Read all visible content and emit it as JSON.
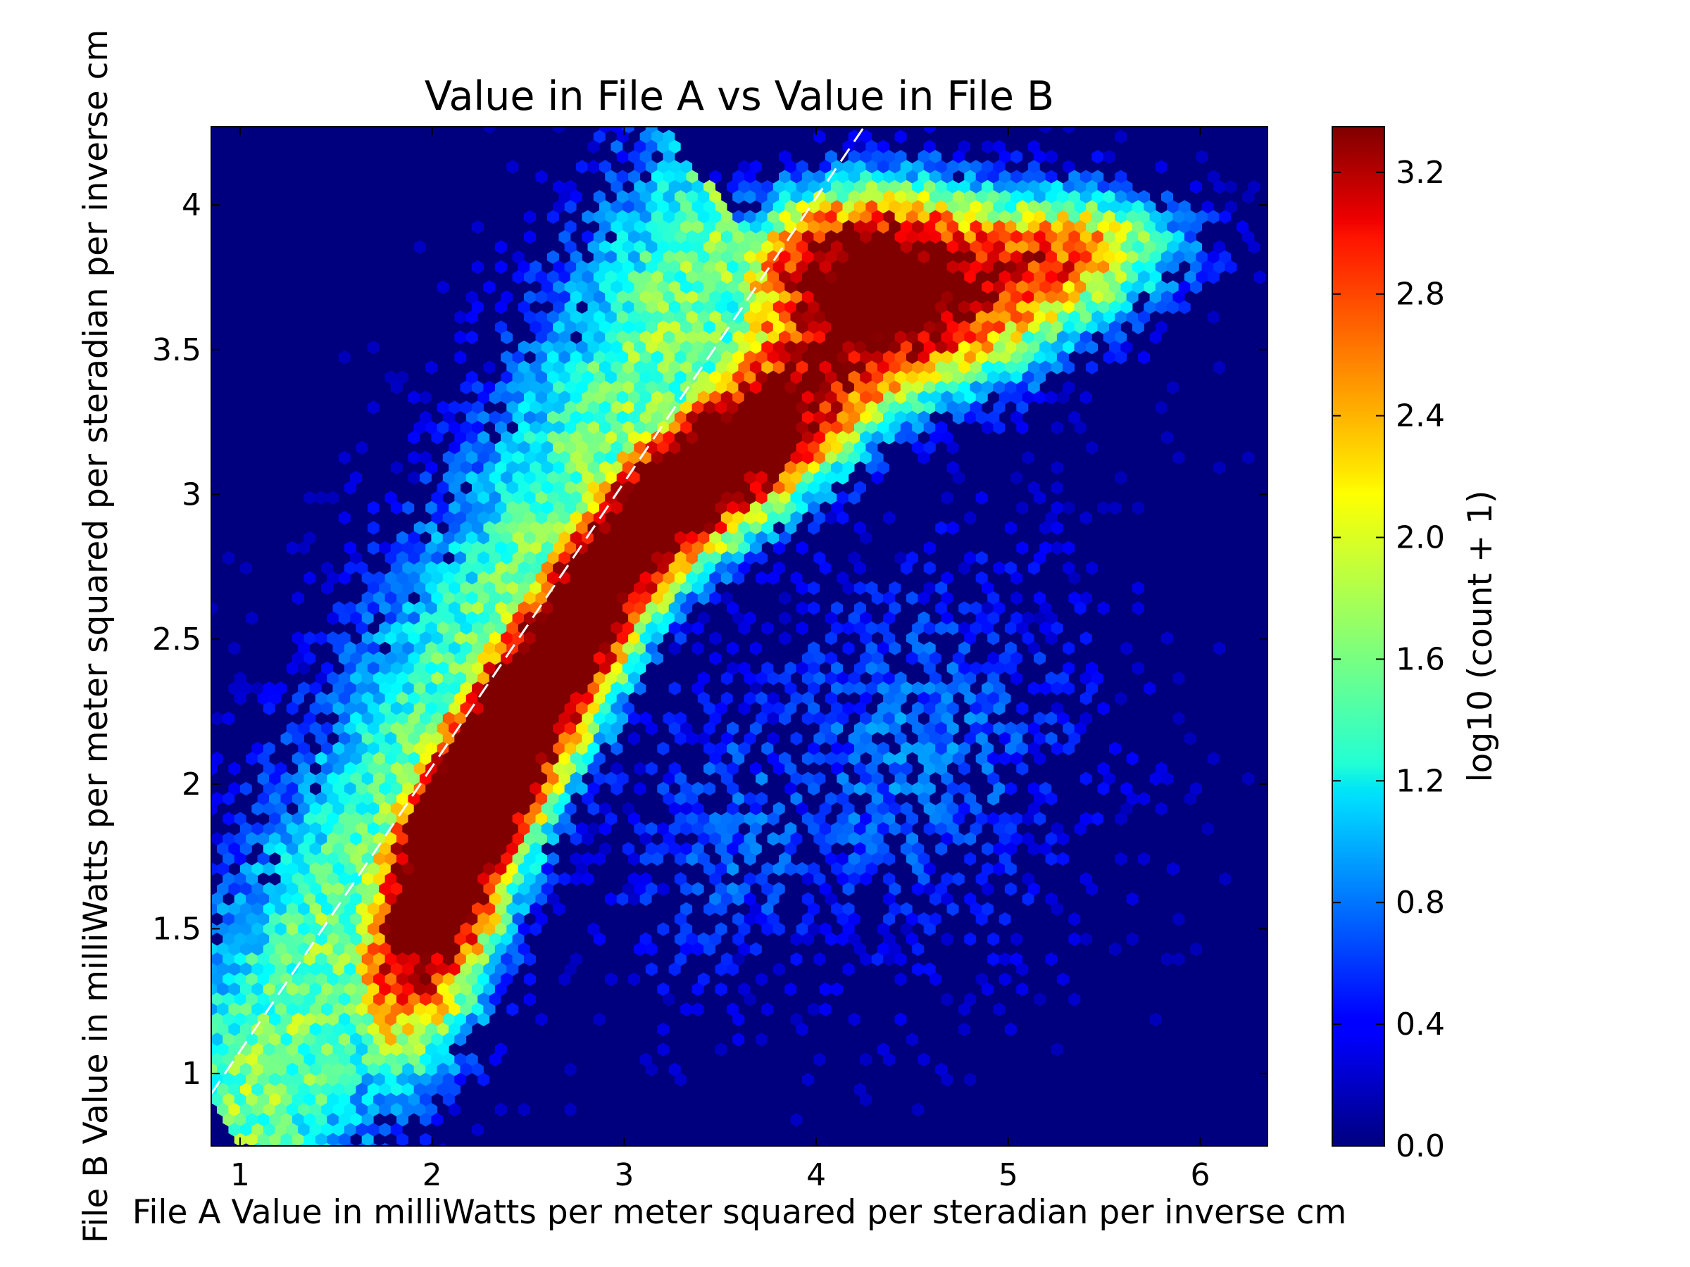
{
  "chart_data": {
    "type": "heatmap",
    "subtype": "hexbin",
    "title": "Value in File A vs Value in File B",
    "xlabel": "File A Value in milliWatts per meter squared per steradian per inverse cm",
    "ylabel": "File B Value in milliWatts per meter squared per steradian per inverse cm",
    "xlim": [
      0.85,
      6.35
    ],
    "ylim": [
      0.75,
      4.27
    ],
    "xticks": [
      1,
      2,
      3,
      4,
      5,
      6
    ],
    "yticks": [
      1,
      1.5,
      2,
      2.5,
      3,
      3.5,
      4
    ],
    "xtick_labels": [
      "1",
      "2",
      "3",
      "4",
      "5",
      "6"
    ],
    "ytick_labels": [
      "1",
      "1.5",
      "2",
      "2.5",
      "3",
      "3.5",
      "4"
    ],
    "background_color": "#00007f",
    "colormap": "jet",
    "colorbar": {
      "label": "log10 (count + 1)",
      "range": [
        0.0,
        3.35
      ],
      "ticks": [
        0.0,
        0.4,
        0.8,
        1.2,
        1.6,
        2.0,
        2.4,
        2.8,
        3.2
      ],
      "tick_labels": [
        "0.0",
        "0.4",
        "0.8",
        "1.2",
        "1.6",
        "2.0",
        "2.4",
        "2.8",
        "3.2"
      ]
    },
    "reference_line": {
      "style": "dashed",
      "color": "#ffffff",
      "x": [
        0.85,
        4.25
      ],
      "y": [
        0.93,
        4.27
      ]
    },
    "density_peaks": [
      {
        "x": 2.5,
        "y": 2.25,
        "value": 3.3
      },
      {
        "x": 3.3,
        "y": 3.05,
        "value": 3.3
      },
      {
        "x": 4.7,
        "y": 3.62,
        "value": 3.1
      },
      {
        "x": 2.0,
        "y": 1.45,
        "value": 3.0
      },
      {
        "x": 3.8,
        "y": 3.2,
        "value": 3.0
      }
    ]
  }
}
